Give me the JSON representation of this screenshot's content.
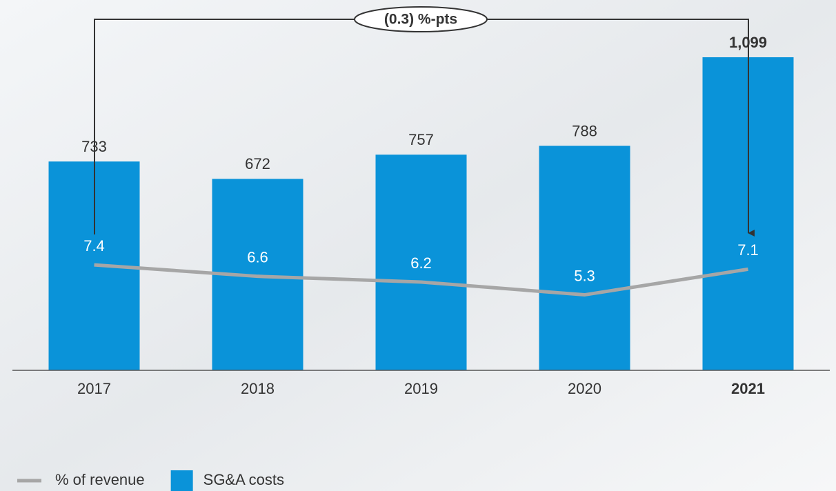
{
  "chart_data": {
    "type": "bar",
    "annotation": "(0.3) %-pts",
    "categories": [
      "2017",
      "2018",
      "2019",
      "2020",
      "2021"
    ],
    "series": [
      {
        "name": "SG&A costs",
        "type": "bar",
        "color": "#0a93d9",
        "values": [
          733,
          672,
          757,
          788,
          1099
        ],
        "value_labels": [
          "733",
          "672",
          "757",
          "788",
          "1,099"
        ]
      },
      {
        "name": "% of revenue",
        "type": "line",
        "axis": "y2",
        "color": "#a6a6a6",
        "values": [
          7.4,
          6.6,
          6.2,
          5.3,
          7.1
        ]
      }
    ],
    "ylim": [
      0,
      1300
    ],
    "y2lim": [
      0,
      26
    ]
  }
}
